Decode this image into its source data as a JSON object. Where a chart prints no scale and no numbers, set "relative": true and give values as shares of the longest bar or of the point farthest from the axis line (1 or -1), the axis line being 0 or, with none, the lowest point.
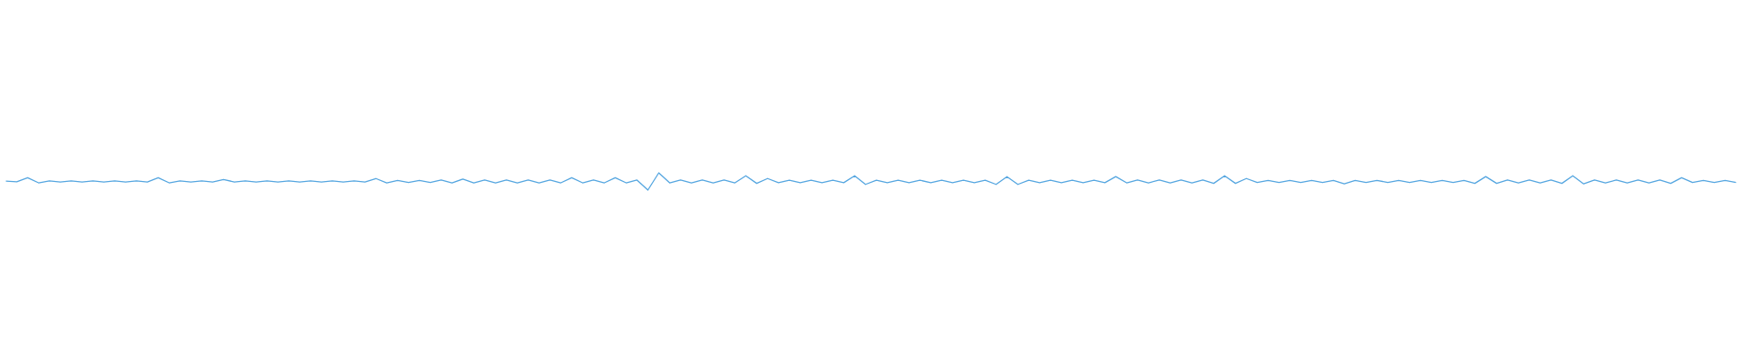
{
  "chart_data": {
    "type": "line",
    "relative": true,
    "color": "#55a6e0",
    "grid": false,
    "tick_labels": false,
    "categories": [
      null,
      null,
      null,
      null,
      null,
      null,
      null,
      null,
      null,
      null,
      null,
      null,
      null,
      null,
      null,
      null,
      null,
      null,
      null,
      null,
      null,
      null,
      null,
      null,
      null,
      null,
      null,
      null,
      null,
      null,
      null,
      null,
      null,
      null,
      null,
      null,
      null,
      null,
      null,
      null,
      null,
      null,
      null,
      null,
      null,
      null,
      null,
      null,
      null,
      null,
      null,
      null,
      null,
      null,
      null,
      null,
      null,
      null,
      null,
      null,
      null,
      null,
      null,
      null,
      null,
      null,
      null,
      null,
      null,
      null,
      null,
      null,
      null,
      null,
      null,
      null,
      null,
      null,
      null,
      null,
      null,
      null,
      null,
      null,
      null,
      null,
      null,
      null,
      null,
      null,
      null,
      null,
      null,
      null,
      null,
      null,
      null,
      null,
      null,
      null,
      null,
      null,
      null,
      null,
      null,
      null,
      null,
      null,
      null,
      null,
      null,
      null,
      null,
      null,
      null,
      null,
      null,
      null,
      null,
      null,
      null,
      null,
      null,
      null,
      null,
      null,
      null,
      null,
      null,
      null,
      null,
      null,
      null,
      null,
      null,
      null,
      null,
      null,
      null,
      null,
      null,
      null,
      null,
      null,
      null,
      null,
      null,
      null,
      null,
      null,
      null,
      null,
      null,
      null,
      null,
      null,
      null,
      null,
      null,
      null
    ],
    "values": [
      0.52,
      0.48,
      0.72,
      0.42,
      0.53,
      0.47,
      0.53,
      0.47,
      0.53,
      0.47,
      0.53,
      0.47,
      0.53,
      0.47,
      0.72,
      0.42,
      0.53,
      0.47,
      0.53,
      0.47,
      0.61,
      0.47,
      0.53,
      0.47,
      0.53,
      0.47,
      0.53,
      0.47,
      0.53,
      0.47,
      0.53,
      0.47,
      0.53,
      0.47,
      0.67,
      0.42,
      0.56,
      0.44,
      0.56,
      0.44,
      0.58,
      0.42,
      0.64,
      0.42,
      0.58,
      0.42,
      0.58,
      0.42,
      0.58,
      0.42,
      0.58,
      0.42,
      0.72,
      0.42,
      0.58,
      0.42,
      0.72,
      0.42,
      0.58,
      0,
      1,
      0.42,
      0.58,
      0.42,
      0.58,
      0.42,
      0.58,
      0.42,
      0.83,
      0.39,
      0.67,
      0.43,
      0.57,
      0.43,
      0.57,
      0.43,
      0.57,
      0.43,
      0.83,
      0.33,
      0.57,
      0.43,
      0.57,
      0.43,
      0.57,
      0.43,
      0.57,
      0.43,
      0.57,
      0.43,
      0.57,
      0.33,
      0.78,
      0.33,
      0.57,
      0.43,
      0.57,
      0.43,
      0.57,
      0.43,
      0.57,
      0.43,
      0.78,
      0.42,
      0.58,
      0.42,
      0.58,
      0.42,
      0.58,
      0.42,
      0.58,
      0.39,
      0.83,
      0.39,
      0.67,
      0.44,
      0.56,
      0.44,
      0.56,
      0.44,
      0.56,
      0.44,
      0.56,
      0.36,
      0.56,
      0.44,
      0.56,
      0.44,
      0.56,
      0.44,
      0.56,
      0.44,
      0.56,
      0.44,
      0.56,
      0.39,
      0.78,
      0.39,
      0.58,
      0.42,
      0.58,
      0.42,
      0.58,
      0.39,
      0.83,
      0.36,
      0.58,
      0.42,
      0.58,
      0.42,
      0.58,
      0.42,
      0.58,
      0.39,
      0.72,
      0.44,
      0.56,
      0.44,
      0.56,
      0.44
    ]
  }
}
